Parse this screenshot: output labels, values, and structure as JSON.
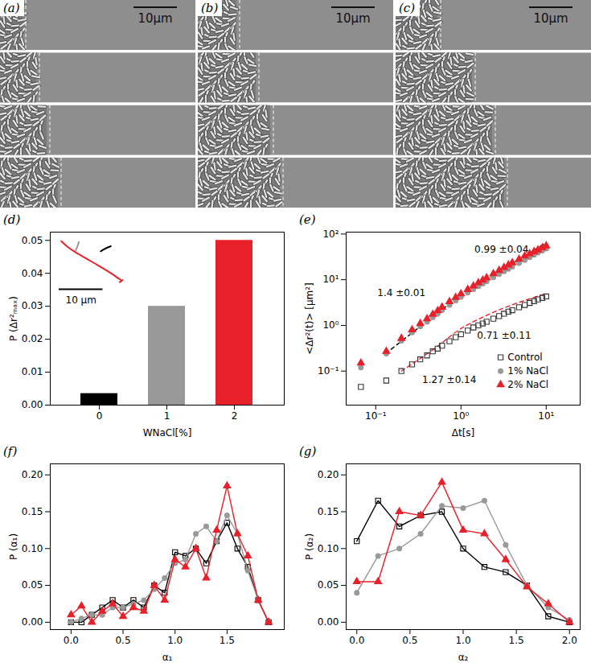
{
  "images": [
    {
      "label": "(a)",
      "scale_bar": "10μm"
    },
    {
      "label": "(b)",
      "scale_bar": "10μm"
    },
    {
      "label": "(c)",
      "scale_bar": "10μm"
    }
  ],
  "chart_data": [
    {
      "label": "(d)",
      "type": "bar",
      "categories": [
        "0",
        "1",
        "2"
      ],
      "values": [
        0.0035,
        0.03,
        0.05
      ],
      "colors": [
        "#000000",
        "#999999",
        "#e8202a"
      ],
      "xlabel": "WNaCl[%]",
      "ylabel": "P (Δr²ₘₐₓ)",
      "ylim": [
        0,
        0.0525
      ],
      "yticks": [
        {
          "value": 0,
          "label": "0.00"
        },
        0.01,
        0.02,
        0.03,
        0.04,
        0.05
      ],
      "inset": {
        "scale_bar": {
          "value": 10,
          "label": "10 μm"
        },
        "trajectories": [
          {
            "color": "#e8202a",
            "x": [
              0.5,
              2,
              4,
              6,
              8,
              10,
              12,
              13.5,
              14.3,
              13.8,
              14.5
            ],
            "y": [
              0.8,
              2.2,
              3.6,
              4.8,
              6,
              7.2,
              8.5,
              9.6,
              10.2,
              10.5,
              10
            ]
          },
          {
            "color": "#999999",
            "x": [
              4.5,
              4.2,
              3.8
            ],
            "y": [
              1,
              2,
              3
            ]
          },
          {
            "color": "#000000",
            "x": [
              9.5,
              10.5,
              11.8
            ],
            "y": [
              3.2,
              2.6,
              2
            ]
          }
        ]
      }
    },
    {
      "label": "(e)",
      "type": "scatter",
      "log": true,
      "x": [
        0.067,
        0.133,
        0.2,
        0.267,
        0.333,
        0.4,
        0.467,
        0.533,
        0.6,
        0.733,
        0.867,
        1.0,
        1.2,
        1.4,
        1.6,
        1.8,
        2.0,
        2.4,
        2.8,
        3.2,
        3.6,
        4.0,
        4.8,
        5.6,
        6.4,
        7.2,
        8.0,
        9.0,
        10.0
      ],
      "series": [
        {
          "name": "Control",
          "color": "#333333",
          "marker": "open_square",
          "values": [
            0.045,
            0.062,
            0.1,
            0.14,
            0.18,
            0.22,
            0.27,
            0.31,
            0.36,
            0.45,
            0.55,
            0.64,
            0.77,
            0.9,
            1.0,
            1.1,
            1.2,
            1.4,
            1.6,
            1.8,
            2.0,
            2.15,
            2.5,
            2.8,
            3.1,
            3.4,
            3.7,
            4.0,
            4.3
          ]
        },
        {
          "name": "1% NaCl",
          "color": "#999999",
          "marker": "circle",
          "values": [
            0.12,
            0.24,
            0.46,
            0.7,
            0.95,
            1.2,
            1.5,
            1.8,
            2.15,
            2.8,
            3.5,
            4.2,
            5.2,
            6.2,
            7.2,
            8.2,
            9.2,
            11.2,
            13.2,
            15.2,
            17.2,
            19.2,
            23,
            27,
            31,
            35,
            39,
            43.5,
            48
          ]
        },
        {
          "name": "2% NaCl",
          "color": "#e8202a",
          "marker": "triangle",
          "values": [
            0.15,
            0.27,
            0.52,
            0.8,
            1.1,
            1.4,
            1.75,
            2.1,
            2.5,
            3.3,
            4.1,
            4.9,
            6.1,
            7.3,
            8.6,
            9.8,
            11,
            13.5,
            16,
            18.5,
            21,
            23.5,
            28,
            33,
            37,
            41,
            45,
            50,
            55
          ]
        }
      ],
      "fit_lines": [
        {
          "color": "#000000",
          "line_style": "dashed",
          "x": [
            0.13,
            0.5,
            1,
            3,
            10
          ],
          "values": [
            0.24,
            1.7,
            4.5,
            16,
            65
          ]
        },
        {
          "color": "#e8202a",
          "line_style": "dashed",
          "x": [
            0.2,
            0.5,
            1,
            3,
            10
          ],
          "values": [
            0.1,
            0.32,
            0.85,
            2.3,
            5.0
          ]
        }
      ],
      "annotations": [
        "0.99 ±0.04",
        "1.4 ±0.01",
        "0.71 ±0.11",
        "1.27 ±0.14"
      ],
      "xlabel": "Δt[s]",
      "ylabel": "<Δr²(t)> [μm²]",
      "xlim": [
        0.045,
        25
      ],
      "ylim": [
        0.018,
        110
      ],
      "xticks": [
        {
          "value": 0.1,
          "label": "10⁻¹"
        },
        {
          "value": 1,
          "label": "10⁰"
        },
        {
          "value": 10,
          "label": "10¹"
        }
      ],
      "yticks": [
        {
          "value": 0.1,
          "label": "10⁻¹"
        },
        {
          "value": 1,
          "label": "10⁰"
        },
        {
          "value": 10,
          "label": "10¹"
        },
        {
          "value": 100,
          "label": "10²"
        }
      ],
      "legend": "bottom-right"
    },
    {
      "label": "(f)",
      "type": "line",
      "x": [
        0,
        0.1,
        0.2,
        0.3,
        0.4,
        0.5,
        0.6,
        0.7,
        0.8,
        0.9,
        1.0,
        1.1,
        1.2,
        1.3,
        1.4,
        1.5,
        1.6,
        1.7,
        1.8,
        1.9
      ],
      "series": [
        {
          "color": "#000000",
          "marker": "open_square",
          "values": [
            0,
            0,
            0.01,
            0.02,
            0.03,
            0.02,
            0.03,
            0.02,
            0.05,
            0.04,
            0.095,
            0.09,
            0.1,
            0.08,
            0.11,
            0.135,
            0.1,
            0.075,
            0.03,
            0
          ]
        },
        {
          "color": "#999999",
          "marker": "circle",
          "values": [
            0,
            0.005,
            0.01,
            0.01,
            0.02,
            0.02,
            0.025,
            0.03,
            0.045,
            0.06,
            0.08,
            0.085,
            0.12,
            0.13,
            0.11,
            0.145,
            0.12,
            0.07,
            0.03,
            0
          ]
        },
        {
          "color": "#e8202a",
          "marker": "triangle",
          "values": [
            0.01,
            0.022,
            0,
            0.015,
            0.025,
            0.008,
            0.02,
            0.015,
            0.05,
            0.03,
            0.085,
            0.075,
            0.1,
            0.06,
            0.125,
            0.185,
            0.12,
            0.09,
            0.03,
            0
          ]
        }
      ],
      "xlabel": "α₁",
      "ylabel": "P (α₁)",
      "xlim": [
        -0.2,
        2.05
      ],
      "ylim": [
        -0.01,
        0.215
      ],
      "xticks": [
        {
          "value": 0,
          "label": "0.0"
        },
        0.5,
        {
          "value": 1,
          "label": "1.0"
        },
        1.5
      ],
      "yticks": [
        {
          "value": 0,
          "label": "0.00"
        },
        0.05,
        {
          "value": 0.1,
          "label": "0.10"
        },
        0.15,
        {
          "value": 0.2,
          "label": "0.20"
        }
      ]
    },
    {
      "label": "(g)",
      "type": "line",
      "x": [
        0,
        0.2,
        0.4,
        0.6,
        0.8,
        1.0,
        1.2,
        1.4,
        1.6,
        1.8,
        2.0
      ],
      "series": [
        {
          "color": "#000000",
          "marker": "open_square",
          "values": [
            0.11,
            0.165,
            0.13,
            0.145,
            0.15,
            0.1,
            0.075,
            0.068,
            0.05,
            0.008,
            0
          ]
        },
        {
          "color": "#999999",
          "marker": "circle",
          "values": [
            0.04,
            0.09,
            0.1,
            0.12,
            0.158,
            0.155,
            0.165,
            0.105,
            0.05,
            0.02,
            0.003
          ]
        },
        {
          "color": "#e8202a",
          "marker": "triangle",
          "values": [
            0.055,
            0.055,
            0.15,
            0.145,
            0.19,
            0.125,
            0.12,
            0.085,
            0.048,
            0.025,
            0
          ]
        }
      ],
      "xlabel": "α₂",
      "ylabel": "P (α₂)",
      "xlim": [
        -0.1,
        2.1
      ],
      "ylim": [
        -0.01,
        0.215
      ],
      "xticks": [
        {
          "value": 0,
          "label": "0.0"
        },
        0.5,
        {
          "value": 1,
          "label": "1.0"
        },
        1.5,
        {
          "value": 2,
          "label": "2.0"
        }
      ],
      "yticks": [
        {
          "value": 0,
          "label": "0.00"
        },
        0.05,
        {
          "value": 0.1,
          "label": "0.10"
        },
        0.15,
        {
          "value": 0.2,
          "label": "0.20"
        }
      ]
    }
  ]
}
